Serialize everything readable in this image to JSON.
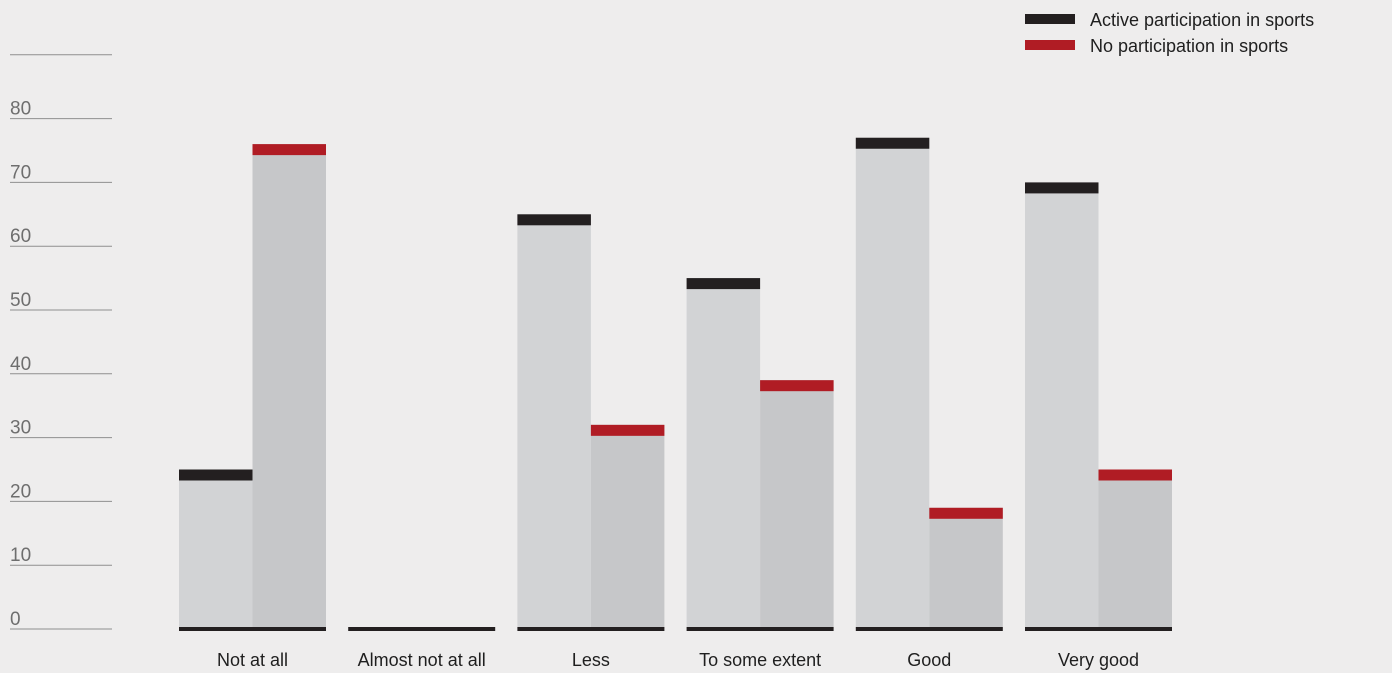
{
  "chart_data": {
    "type": "bar",
    "categories": [
      "Not at all",
      "Almost not at all",
      "Less",
      "To some extent",
      "Good",
      "Very good"
    ],
    "series": [
      {
        "name": "Active participation in sports",
        "values": [
          25,
          0,
          65,
          55,
          77,
          70
        ],
        "color": "#231f20"
      },
      {
        "name": "No participation in sports",
        "values": [
          76,
          0,
          32,
          39,
          19,
          25
        ],
        "color": "#b01c24"
      }
    ],
    "bar_fill_colors": [
      "#d2d3d5",
      "#c6c7c9"
    ],
    "yticks": [
      0,
      10,
      20,
      30,
      40,
      50,
      60,
      70,
      80
    ],
    "ylim": [
      0,
      90
    ],
    "grid": false,
    "legend_position": "top-right",
    "title": "",
    "xlabel": "",
    "ylabel": ""
  }
}
